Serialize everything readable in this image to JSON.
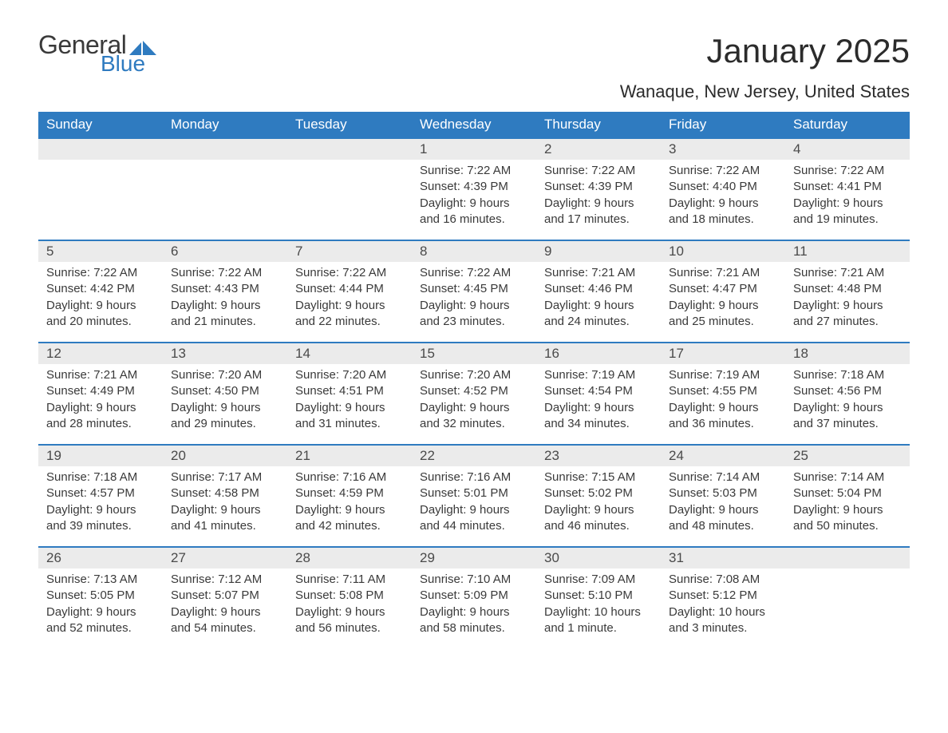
{
  "brand": {
    "word1": "General",
    "word2": "Blue",
    "flag_color": "#2f7bc0"
  },
  "title": "January 2025",
  "location": "Wanaque, New Jersey, United States",
  "colors": {
    "header_bg": "#2f7bc0",
    "header_text": "#ffffff",
    "daynum_bg": "#ebebeb",
    "text": "#3a3a3a",
    "row_border": "#2f7bc0",
    "page_bg": "#ffffff"
  },
  "fonts": {
    "title_size": 42,
    "location_size": 22,
    "dayhead_size": 17,
    "body_size": 15
  },
  "day_headers": [
    "Sunday",
    "Monday",
    "Tuesday",
    "Wednesday",
    "Thursday",
    "Friday",
    "Saturday"
  ],
  "weeks": [
    [
      null,
      null,
      null,
      {
        "n": "1",
        "sunrise": "Sunrise: 7:22 AM",
        "sunset": "Sunset: 4:39 PM",
        "day1": "Daylight: 9 hours",
        "day2": "and 16 minutes."
      },
      {
        "n": "2",
        "sunrise": "Sunrise: 7:22 AM",
        "sunset": "Sunset: 4:39 PM",
        "day1": "Daylight: 9 hours",
        "day2": "and 17 minutes."
      },
      {
        "n": "3",
        "sunrise": "Sunrise: 7:22 AM",
        "sunset": "Sunset: 4:40 PM",
        "day1": "Daylight: 9 hours",
        "day2": "and 18 minutes."
      },
      {
        "n": "4",
        "sunrise": "Sunrise: 7:22 AM",
        "sunset": "Sunset: 4:41 PM",
        "day1": "Daylight: 9 hours",
        "day2": "and 19 minutes."
      }
    ],
    [
      {
        "n": "5",
        "sunrise": "Sunrise: 7:22 AM",
        "sunset": "Sunset: 4:42 PM",
        "day1": "Daylight: 9 hours",
        "day2": "and 20 minutes."
      },
      {
        "n": "6",
        "sunrise": "Sunrise: 7:22 AM",
        "sunset": "Sunset: 4:43 PM",
        "day1": "Daylight: 9 hours",
        "day2": "and 21 minutes."
      },
      {
        "n": "7",
        "sunrise": "Sunrise: 7:22 AM",
        "sunset": "Sunset: 4:44 PM",
        "day1": "Daylight: 9 hours",
        "day2": "and 22 minutes."
      },
      {
        "n": "8",
        "sunrise": "Sunrise: 7:22 AM",
        "sunset": "Sunset: 4:45 PM",
        "day1": "Daylight: 9 hours",
        "day2": "and 23 minutes."
      },
      {
        "n": "9",
        "sunrise": "Sunrise: 7:21 AM",
        "sunset": "Sunset: 4:46 PM",
        "day1": "Daylight: 9 hours",
        "day2": "and 24 minutes."
      },
      {
        "n": "10",
        "sunrise": "Sunrise: 7:21 AM",
        "sunset": "Sunset: 4:47 PM",
        "day1": "Daylight: 9 hours",
        "day2": "and 25 minutes."
      },
      {
        "n": "11",
        "sunrise": "Sunrise: 7:21 AM",
        "sunset": "Sunset: 4:48 PM",
        "day1": "Daylight: 9 hours",
        "day2": "and 27 minutes."
      }
    ],
    [
      {
        "n": "12",
        "sunrise": "Sunrise: 7:21 AM",
        "sunset": "Sunset: 4:49 PM",
        "day1": "Daylight: 9 hours",
        "day2": "and 28 minutes."
      },
      {
        "n": "13",
        "sunrise": "Sunrise: 7:20 AM",
        "sunset": "Sunset: 4:50 PM",
        "day1": "Daylight: 9 hours",
        "day2": "and 29 minutes."
      },
      {
        "n": "14",
        "sunrise": "Sunrise: 7:20 AM",
        "sunset": "Sunset: 4:51 PM",
        "day1": "Daylight: 9 hours",
        "day2": "and 31 minutes."
      },
      {
        "n": "15",
        "sunrise": "Sunrise: 7:20 AM",
        "sunset": "Sunset: 4:52 PM",
        "day1": "Daylight: 9 hours",
        "day2": "and 32 minutes."
      },
      {
        "n": "16",
        "sunrise": "Sunrise: 7:19 AM",
        "sunset": "Sunset: 4:54 PM",
        "day1": "Daylight: 9 hours",
        "day2": "and 34 minutes."
      },
      {
        "n": "17",
        "sunrise": "Sunrise: 7:19 AM",
        "sunset": "Sunset: 4:55 PM",
        "day1": "Daylight: 9 hours",
        "day2": "and 36 minutes."
      },
      {
        "n": "18",
        "sunrise": "Sunrise: 7:18 AM",
        "sunset": "Sunset: 4:56 PM",
        "day1": "Daylight: 9 hours",
        "day2": "and 37 minutes."
      }
    ],
    [
      {
        "n": "19",
        "sunrise": "Sunrise: 7:18 AM",
        "sunset": "Sunset: 4:57 PM",
        "day1": "Daylight: 9 hours",
        "day2": "and 39 minutes."
      },
      {
        "n": "20",
        "sunrise": "Sunrise: 7:17 AM",
        "sunset": "Sunset: 4:58 PM",
        "day1": "Daylight: 9 hours",
        "day2": "and 41 minutes."
      },
      {
        "n": "21",
        "sunrise": "Sunrise: 7:16 AM",
        "sunset": "Sunset: 4:59 PM",
        "day1": "Daylight: 9 hours",
        "day2": "and 42 minutes."
      },
      {
        "n": "22",
        "sunrise": "Sunrise: 7:16 AM",
        "sunset": "Sunset: 5:01 PM",
        "day1": "Daylight: 9 hours",
        "day2": "and 44 minutes."
      },
      {
        "n": "23",
        "sunrise": "Sunrise: 7:15 AM",
        "sunset": "Sunset: 5:02 PM",
        "day1": "Daylight: 9 hours",
        "day2": "and 46 minutes."
      },
      {
        "n": "24",
        "sunrise": "Sunrise: 7:14 AM",
        "sunset": "Sunset: 5:03 PM",
        "day1": "Daylight: 9 hours",
        "day2": "and 48 minutes."
      },
      {
        "n": "25",
        "sunrise": "Sunrise: 7:14 AM",
        "sunset": "Sunset: 5:04 PM",
        "day1": "Daylight: 9 hours",
        "day2": "and 50 minutes."
      }
    ],
    [
      {
        "n": "26",
        "sunrise": "Sunrise: 7:13 AM",
        "sunset": "Sunset: 5:05 PM",
        "day1": "Daylight: 9 hours",
        "day2": "and 52 minutes."
      },
      {
        "n": "27",
        "sunrise": "Sunrise: 7:12 AM",
        "sunset": "Sunset: 5:07 PM",
        "day1": "Daylight: 9 hours",
        "day2": "and 54 minutes."
      },
      {
        "n": "28",
        "sunrise": "Sunrise: 7:11 AM",
        "sunset": "Sunset: 5:08 PM",
        "day1": "Daylight: 9 hours",
        "day2": "and 56 minutes."
      },
      {
        "n": "29",
        "sunrise": "Sunrise: 7:10 AM",
        "sunset": "Sunset: 5:09 PM",
        "day1": "Daylight: 9 hours",
        "day2": "and 58 minutes."
      },
      {
        "n": "30",
        "sunrise": "Sunrise: 7:09 AM",
        "sunset": "Sunset: 5:10 PM",
        "day1": "Daylight: 10 hours",
        "day2": "and 1 minute."
      },
      {
        "n": "31",
        "sunrise": "Sunrise: 7:08 AM",
        "sunset": "Sunset: 5:12 PM",
        "day1": "Daylight: 10 hours",
        "day2": "and 3 minutes."
      },
      null
    ]
  ]
}
